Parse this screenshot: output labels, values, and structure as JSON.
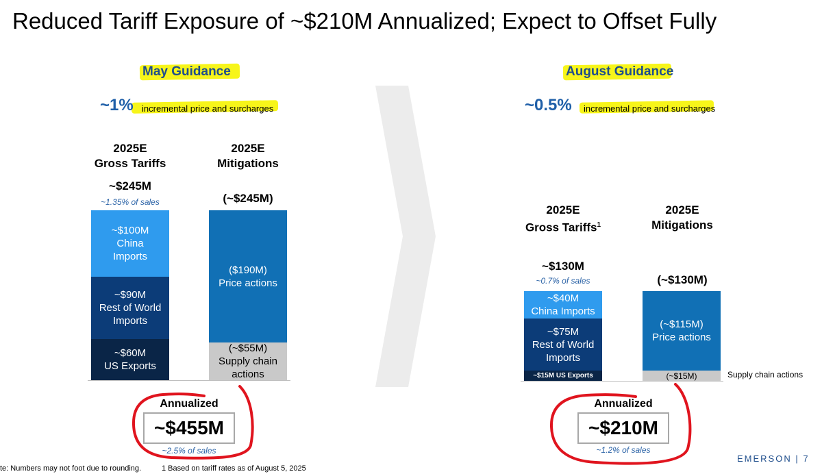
{
  "title": "Reduced Tariff Exposure of ~$210M Annualized; Expect to Offset Fully",
  "colors": {
    "highlight": "#f7f51a",
    "accent_blue": "#1f5fa8",
    "china": "#2f9bee",
    "rest_of_world": "#0c3c78",
    "us_exports": "#0a2547",
    "price_actions": "#1170b5",
    "supply_chain": "#c9c9c9",
    "annotation_red": "#e0141e"
  },
  "may": {
    "heading": "May Guidance",
    "pct": "~1%",
    "pct_text": "incremental price and surcharges",
    "gross": {
      "header_line1": "2025E",
      "header_line2": "Gross Tariffs",
      "total": "~$245M",
      "subtitle": "~1.35% of sales",
      "segments": [
        {
          "line1": "~$100M",
          "line2": "China",
          "line3": "Imports"
        },
        {
          "line1": "~$90M",
          "line2": "Rest of World",
          "line3": "Imports"
        },
        {
          "line1": "~$60M",
          "line2": "US Exports"
        }
      ]
    },
    "mitigations": {
      "header_line1": "2025E",
      "header_line2": "Mitigations",
      "total": "(~$245M)",
      "segments": [
        {
          "line1": "($190M)",
          "line2": "Price actions"
        },
        {
          "line1": "(~$55M)",
          "line2": "Supply chain",
          "line3": "actions"
        }
      ]
    },
    "annualized_label": "Annualized",
    "annualized_value": "~$455M",
    "annualized_sub": "~2.5% of sales"
  },
  "august": {
    "heading_main": "August Guidanc",
    "heading_tail": "e",
    "pct": "~0.5%",
    "pct_text": "incremental price and surcharge",
    "pct_text_tail": "s",
    "gross": {
      "header_line1": "2025E",
      "header_line2": "Gross Tariffs",
      "footnote_mark": "1",
      "total": "~$130M",
      "subtitle": "~0.7% of sales",
      "segments": [
        {
          "line1": "~$40M",
          "line2": "China Imports"
        },
        {
          "line1": "~$75M",
          "line2": "Rest of World",
          "line3": "Imports"
        },
        {
          "line1": "~$15M US Exports"
        }
      ]
    },
    "mitigations": {
      "header_line1": "2025E",
      "header_line2": "Mitigations",
      "total": "(~$130M)",
      "segments": [
        {
          "line1": "(~$115M)",
          "line2": "Price actions"
        },
        {
          "line1": "(~$15M)"
        }
      ],
      "supply_chain_label": "Supply chain actions"
    },
    "annualized_label": "Annualized",
    "annualized_value": "~$210M",
    "annualized_sub": "~1.2% of sales"
  },
  "footer": {
    "note": "te: Numbers may not foot due to rounding.",
    "footnote": "1 Based on tariff rates as of August 5, 2025",
    "brand": "EMERSON",
    "separator": "|",
    "page": "7"
  }
}
